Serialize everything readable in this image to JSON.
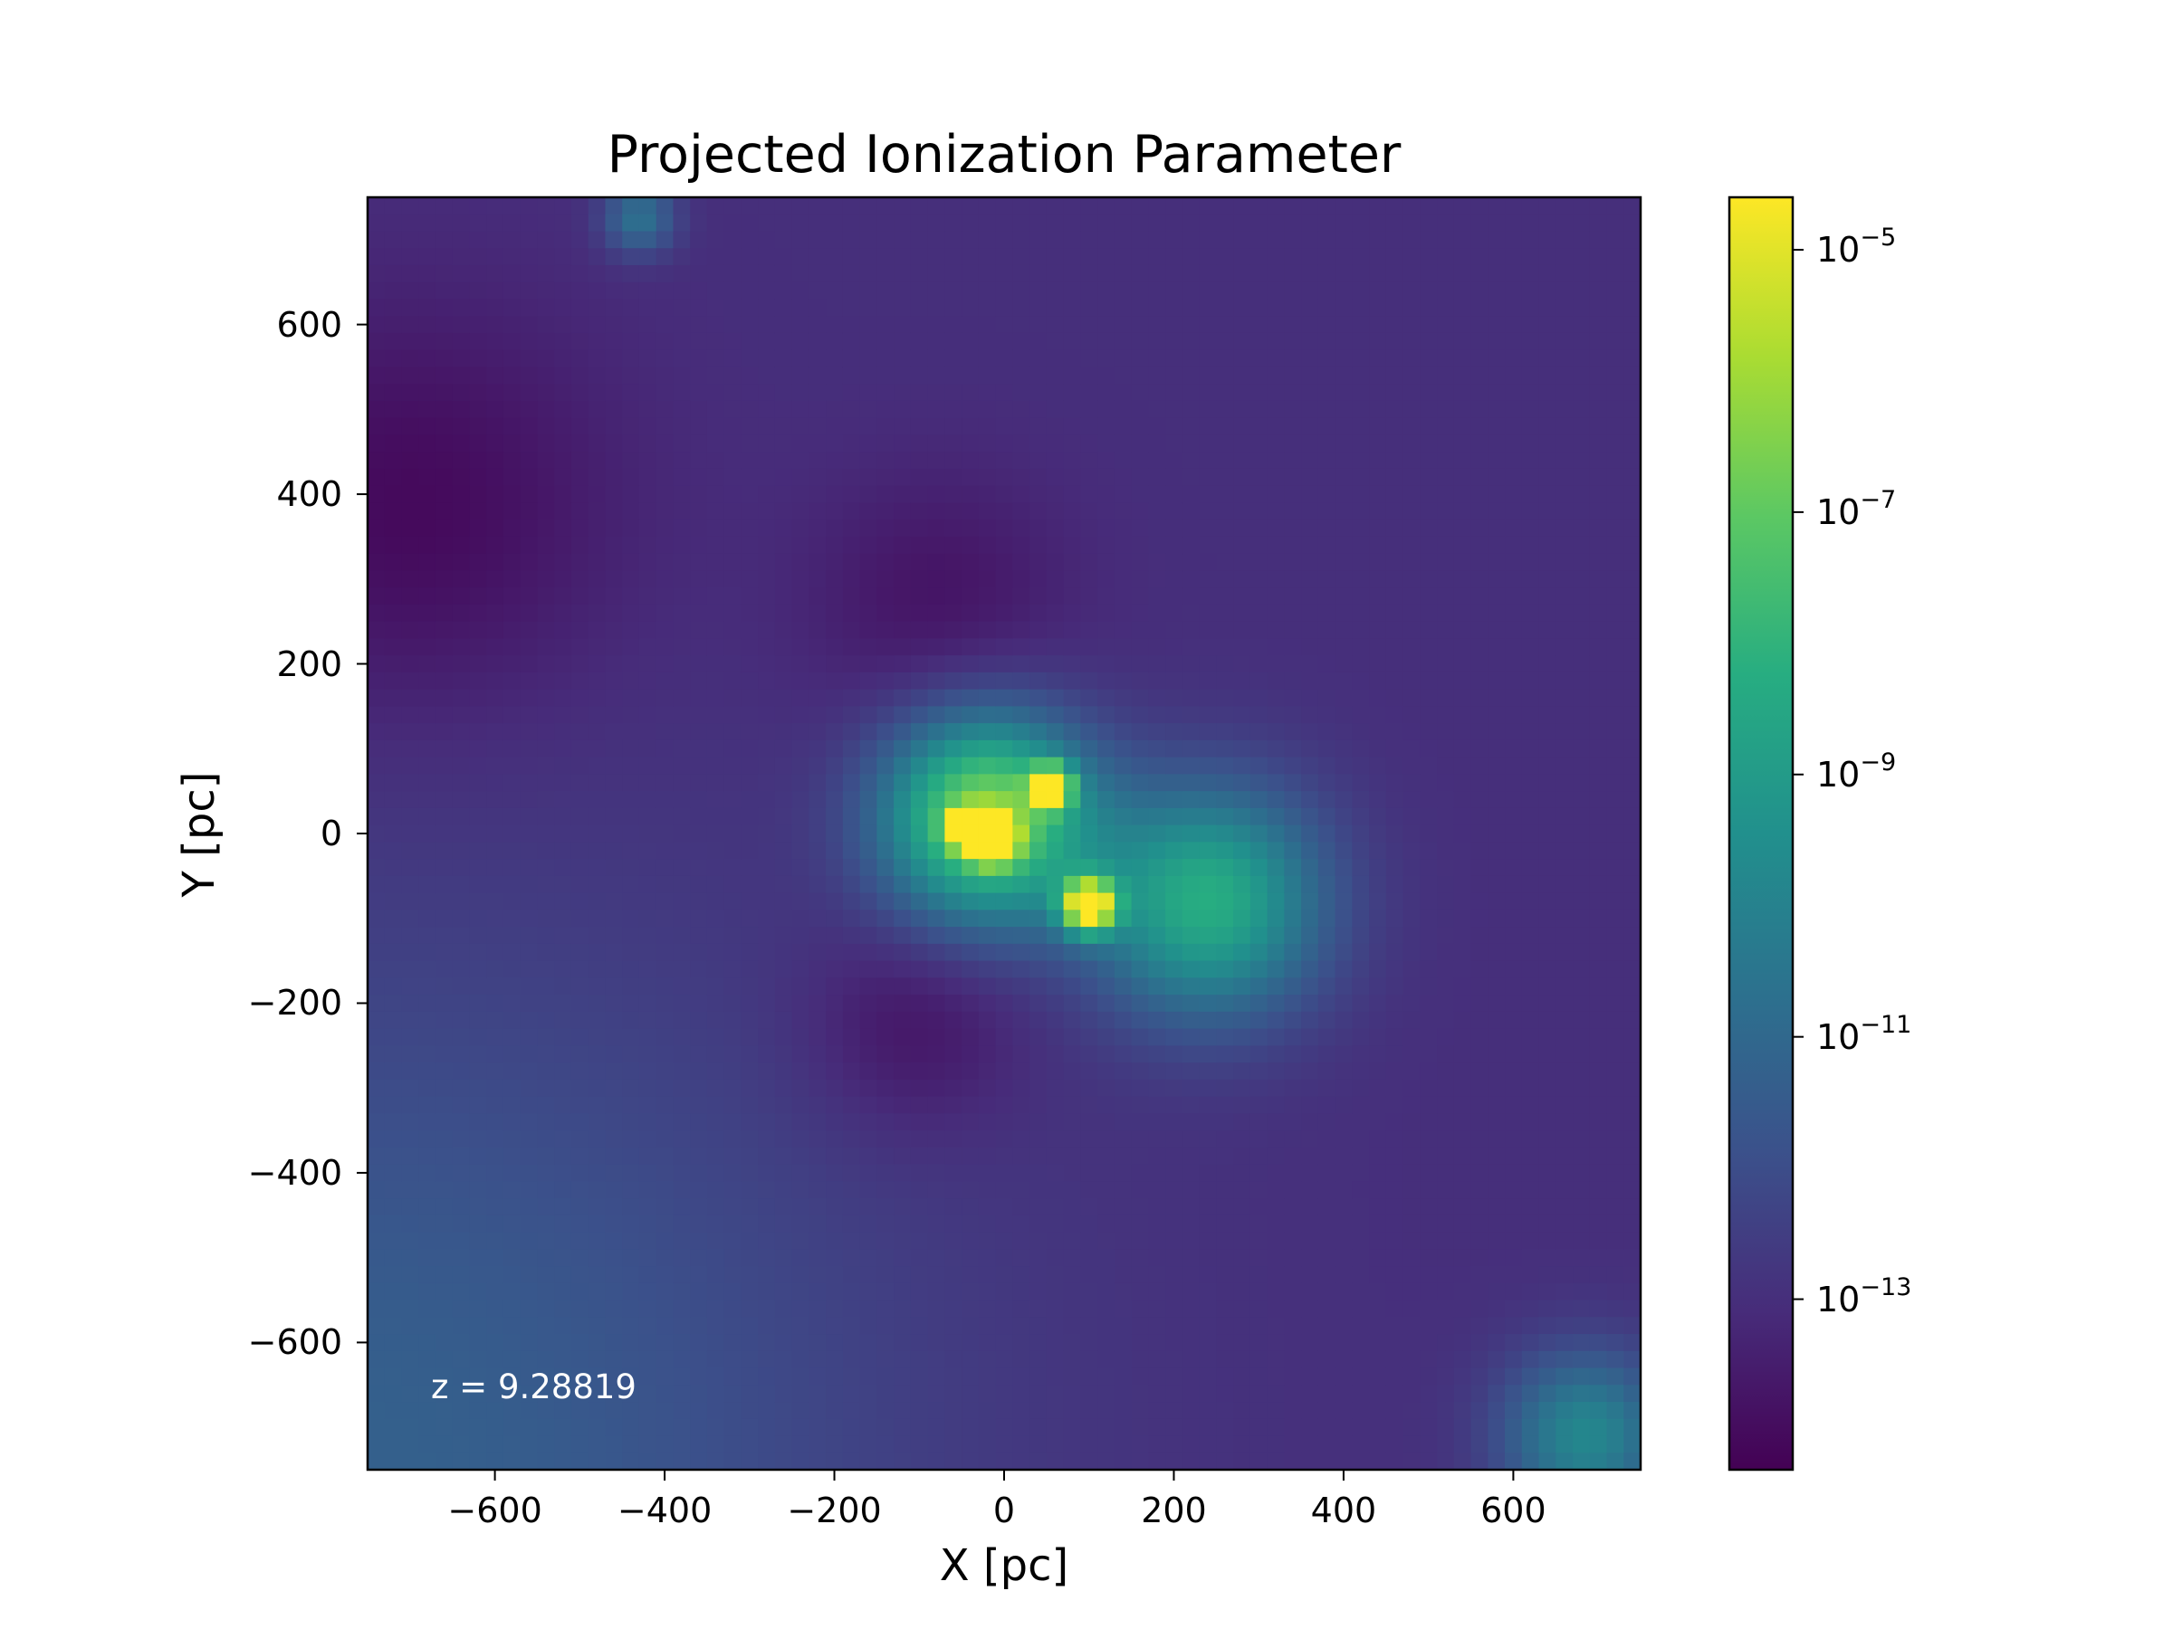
{
  "chart_data": {
    "type": "heatmap",
    "title": "Projected Ionization Parameter",
    "xlabel": "X [pc]",
    "ylabel": "Y [pc]",
    "xlim": [
      -750,
      750
    ],
    "ylim": [
      -750,
      750
    ],
    "x_ticks": [
      "−600",
      "−400",
      "−200",
      "0",
      "200",
      "400",
      "600"
    ],
    "x_tick_values": [
      -600,
      -400,
      -200,
      0,
      200,
      400,
      600
    ],
    "y_ticks": [
      "600",
      "400",
      "200",
      "0",
      "−200",
      "−400",
      "−600"
    ],
    "y_tick_values": [
      600,
      400,
      200,
      0,
      -200,
      -400,
      -600
    ],
    "colormap": "viridis",
    "color_scale": "log",
    "colorbar": {
      "range_log10": [
        -14.3,
        -4.6
      ],
      "ticks": [
        {
          "base": "10",
          "exp": "−5",
          "log10": -5
        },
        {
          "base": "10",
          "exp": "−7",
          "log10": -7
        },
        {
          "base": "10",
          "exp": "−9",
          "log10": -9
        },
        {
          "base": "10",
          "exp": "−11",
          "log10": -11
        },
        {
          "base": "10",
          "exp": "−13",
          "log10": -13
        }
      ]
    },
    "background_log10": -13.0,
    "features": [
      {
        "name": "central ionized region",
        "x": -20,
        "y": 20,
        "sigma": 85,
        "peak_log10": -6.3
      },
      {
        "name": "southeast extension",
        "x": 240,
        "y": -80,
        "sigma": 95,
        "peak_log10": -8.3
      },
      {
        "name": "bright knot",
        "x": -15,
        "y": -5,
        "sigma": 18,
        "peak_log10": -4.9
      },
      {
        "name": "bright knot",
        "x": 100,
        "y": -85,
        "sigma": 22,
        "peak_log10": -5.2
      },
      {
        "name": "bright knot",
        "x": 55,
        "y": 55,
        "sigma": 16,
        "peak_log10": -5.6
      },
      {
        "name": "bright knot",
        "x": -45,
        "y": 5,
        "sigma": 14,
        "peak_log10": -5.8
      },
      {
        "name": "point source",
        "x": 685,
        "y": -710,
        "sigma": 70,
        "peak_log10": -9.8
      },
      {
        "name": "point source",
        "x": -430,
        "y": 725,
        "sigma": 30,
        "peak_log10": -10.6
      },
      {
        "name": "lower-left enhancement",
        "x": -750,
        "y": -750,
        "sigma": 420,
        "peak_log10": -11.3
      },
      {
        "name": "left low region",
        "x": -700,
        "y": 380,
        "sigma": 170,
        "peak_log10": -14.1
      },
      {
        "name": "upper low region",
        "x": -80,
        "y": 270,
        "sigma": 110,
        "peak_log10": -13.8
      },
      {
        "name": "lower low region",
        "x": -110,
        "y": -230,
        "sigma": 90,
        "peak_log10": -13.9
      }
    ],
    "annotation": "z = 9.28819"
  }
}
